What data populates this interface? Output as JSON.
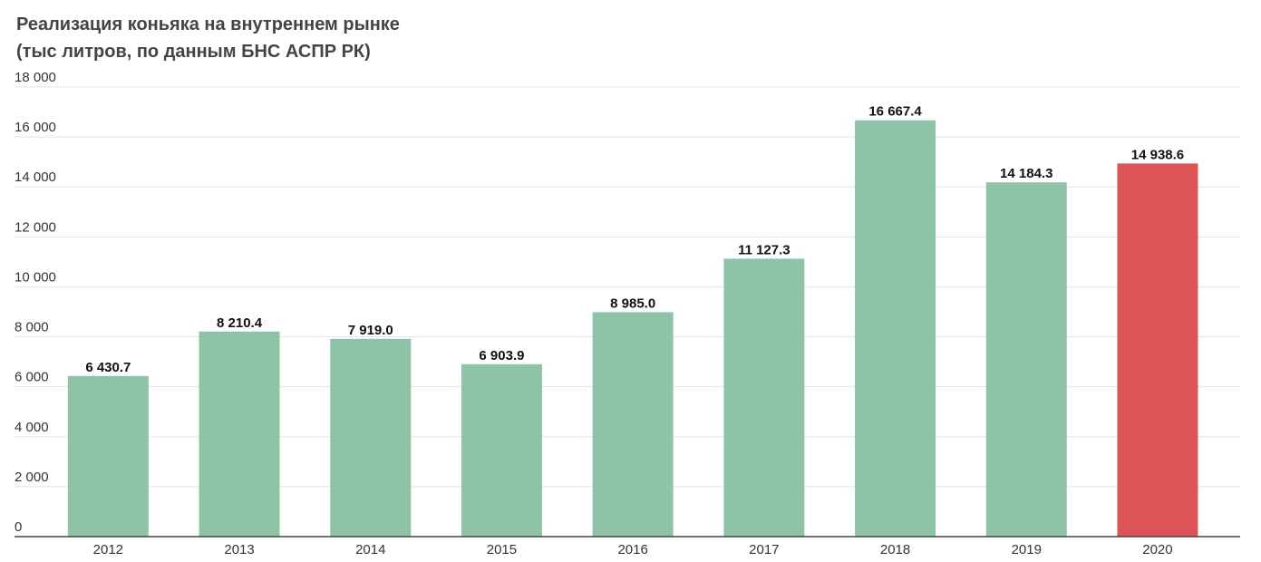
{
  "chart_data": {
    "type": "bar",
    "title": "Реализация коньяка на внутреннем рынке",
    "subtitle": "(тыс литров, по данным БНС АСПР РК)",
    "xlabel": "",
    "ylabel": "",
    "categories": [
      "2012",
      "2013",
      "2014",
      "2015",
      "2016",
      "2017",
      "2018",
      "2019",
      "2020"
    ],
    "values": [
      6430.7,
      8210.4,
      7919.0,
      6903.9,
      8985.0,
      11127.3,
      16667.4,
      14184.3,
      14938.6
    ],
    "data_labels": [
      "6 430.7",
      "8 210.4",
      "7 919.0",
      "6 903.9",
      "8 985.0",
      "11 127.3",
      "16 667.4",
      "14 184.3",
      "14 938.6"
    ],
    "ylim": [
      0,
      18000
    ],
    "yticks": [
      0,
      2000,
      4000,
      6000,
      8000,
      10000,
      12000,
      14000,
      16000,
      18000
    ],
    "ytick_labels": [
      "0",
      "2 000",
      "4 000",
      "6 000",
      "8 000",
      "10 000",
      "12 000",
      "14 000",
      "16 000",
      "18 000"
    ],
    "grid": true,
    "legend": "none",
    "colors": {
      "bar": "#8fc3a8",
      "highlight": "#dd5457",
      "grid": "#e3e3e3",
      "axis": "#444444"
    },
    "highlight_category": "2020"
  }
}
